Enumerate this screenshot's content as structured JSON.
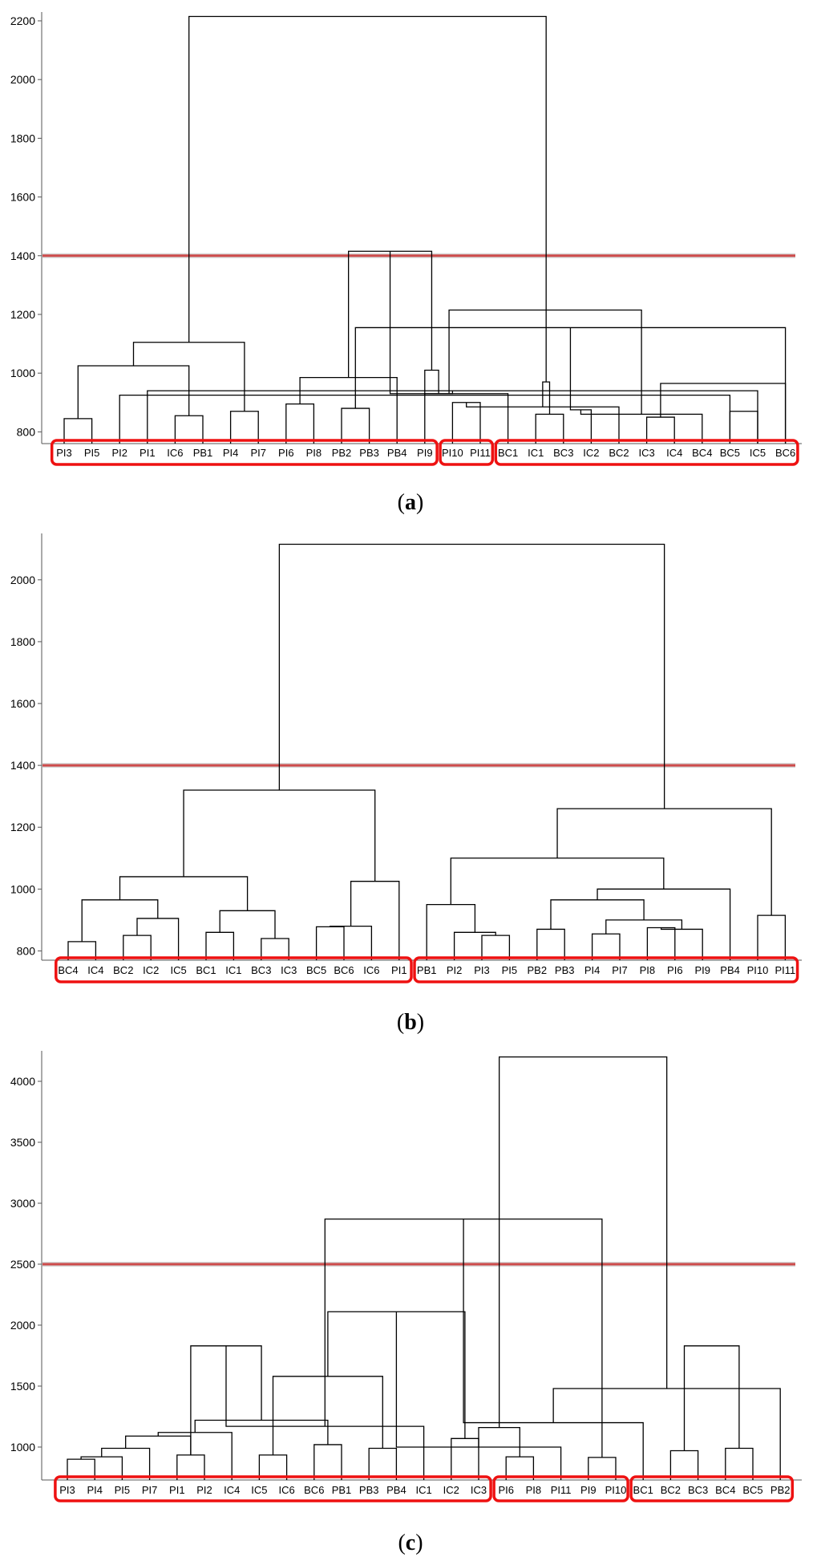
{
  "chart_data": [
    {
      "type": "dendrogram",
      "caption_open": "(",
      "caption_letter": "a",
      "caption_close": ")",
      "ylim": [
        760,
        2230
      ],
      "yticks": [
        800,
        1000,
        1200,
        1400,
        1600,
        1800,
        2000,
        2200
      ],
      "cut_height": 1400,
      "leaves": [
        "PI3",
        "PI5",
        "PI2",
        "PI1",
        "IC6",
        "PB1",
        "PI4",
        "PI7",
        "PI6",
        "PI8",
        "PB2",
        "PB3",
        "PB4",
        "PI9",
        "PI10",
        "PI11",
        "BC1",
        "IC1",
        "BC3",
        "IC2",
        "BC2",
        "IC3",
        "IC4",
        "BC4",
        "BC5",
        "IC5",
        "BC6"
      ],
      "merges": [
        [
          0,
          1,
          845
        ],
        [
          24,
          2,
          925
        ],
        [
          25,
          3,
          940
        ],
        [
          4,
          5,
          855
        ],
        [
          6,
          7,
          870
        ],
        [
          8,
          9,
          895
        ],
        [
          28,
          29,
          930
        ],
        [
          27,
          30,
          1025
        ],
        [
          10,
          11,
          880
        ],
        [
          32,
          12,
          985
        ],
        [
          33,
          13,
          1010
        ],
        [
          31,
          34,
          1105
        ],
        [
          26,
          35,
          1155
        ],
        [
          14,
          15,
          900
        ],
        [
          36,
          37,
          1415
        ],
        [
          17,
          18,
          860
        ],
        [
          39,
          19,
          875
        ],
        [
          40,
          20,
          885
        ],
        [
          16,
          41,
          930
        ],
        [
          21,
          22,
          850
        ],
        [
          43,
          23,
          860
        ],
        [
          42,
          44,
          970
        ],
        [
          24,
          25,
          870
        ],
        [
          46,
          26,
          965
        ],
        [
          45,
          47,
          1215
        ],
        [
          38,
          48,
          2215
        ]
      ],
      "groups": [
        [
          0,
          13
        ],
        [
          14,
          15
        ],
        [
          16,
          26
        ]
      ]
    },
    {
      "type": "dendrogram",
      "caption_open": "(",
      "caption_letter": "b",
      "caption_close": ")",
      "ylim": [
        770,
        2150
      ],
      "yticks": [
        800,
        1000,
        1200,
        1400,
        1600,
        1800,
        2000
      ],
      "cut_height": 1400,
      "leaves": [
        "BC4",
        "IC4",
        "BC2",
        "IC2",
        "IC5",
        "BC1",
        "IC1",
        "BC3",
        "IC3",
        "BC5",
        "BC6",
        "IC6",
        "PI1",
        "PB1",
        "PI2",
        "PI3",
        "PI5",
        "PB2",
        "PB3",
        "PI4",
        "PI7",
        "PI8",
        "PI6",
        "PI9",
        "PB4",
        "PI10",
        "PI11"
      ],
      "merges": [
        [
          0,
          1,
          830
        ],
        [
          2,
          3,
          850
        ],
        [
          28,
          4,
          905
        ],
        [
          27,
          29,
          965
        ],
        [
          5,
          6,
          860
        ],
        [
          7,
          8,
          840
        ],
        [
          31,
          32,
          930
        ],
        [
          30,
          33,
          1040
        ],
        [
          9,
          10,
          878
        ],
        [
          35,
          11,
          880
        ],
        [
          36,
          12,
          1025
        ],
        [
          34,
          37,
          1320
        ],
        [
          15,
          16,
          850
        ],
        [
          39,
          14,
          860
        ],
        [
          13,
          40,
          950
        ],
        [
          17,
          18,
          870
        ],
        [
          19,
          20,
          855
        ],
        [
          21,
          22,
          875
        ],
        [
          44,
          23,
          870
        ],
        [
          43,
          45,
          900
        ],
        [
          42,
          46,
          965
        ],
        [
          47,
          24,
          1000
        ],
        [
          41,
          48,
          1100
        ],
        [
          25,
          26,
          915
        ],
        [
          49,
          50,
          1260
        ],
        [
          38,
          51,
          2115
        ]
      ],
      "groups": [
        [
          0,
          12
        ],
        [
          13,
          26
        ]
      ]
    },
    {
      "type": "dendrogram",
      "caption_open": "(",
      "caption_letter": "c",
      "caption_close": ")",
      "ylim": [
        730,
        4250
      ],
      "yticks": [
        1000,
        1500,
        2000,
        2500,
        3000,
        3500,
        4000
      ],
      "cut_height": 2500,
      "leaves": [
        "PI3",
        "PI4",
        "PI5",
        "PI7",
        "PI1",
        "PI2",
        "IC4",
        "IC5",
        "IC6",
        "BC6",
        "PB1",
        "PB3",
        "PB4",
        "IC1",
        "IC2",
        "IC3",
        "PI6",
        "PI8",
        "PI11",
        "PI9",
        "PI10",
        "BC1",
        "BC2",
        "BC3",
        "BC4",
        "BC5",
        "PB2"
      ],
      "merges": [
        [
          0,
          1,
          900
        ],
        [
          27,
          2,
          920
        ],
        [
          28,
          3,
          990
        ],
        [
          4,
          5,
          935
        ],
        [
          29,
          30,
          1090
        ],
        [
          7,
          8,
          935
        ],
        [
          6,
          31,
          1120
        ],
        [
          9,
          10,
          1020
        ],
        [
          11,
          12,
          990
        ],
        [
          33,
          34,
          1220
        ],
        [
          32,
          35,
          1580
        ],
        [
          30,
          36,
          1830
        ],
        [
          14,
          15,
          1070
        ],
        [
          13,
          38,
          1170
        ],
        [
          37,
          39,
          2110
        ],
        [
          16,
          17,
          920
        ],
        [
          41,
          18,
          1000
        ],
        [
          19,
          20,
          915
        ],
        [
          42,
          43,
          1160
        ],
        [
          40,
          44,
          2870
        ],
        [
          22,
          23,
          970
        ],
        [
          21,
          46,
          1200
        ],
        [
          24,
          25,
          990
        ],
        [
          48,
          26,
          1480
        ],
        [
          47,
          49,
          1830
        ],
        [
          45,
          50,
          4200
        ]
      ],
      "groups": [
        [
          0,
          15
        ],
        [
          16,
          20
        ],
        [
          21,
          26
        ]
      ]
    }
  ]
}
